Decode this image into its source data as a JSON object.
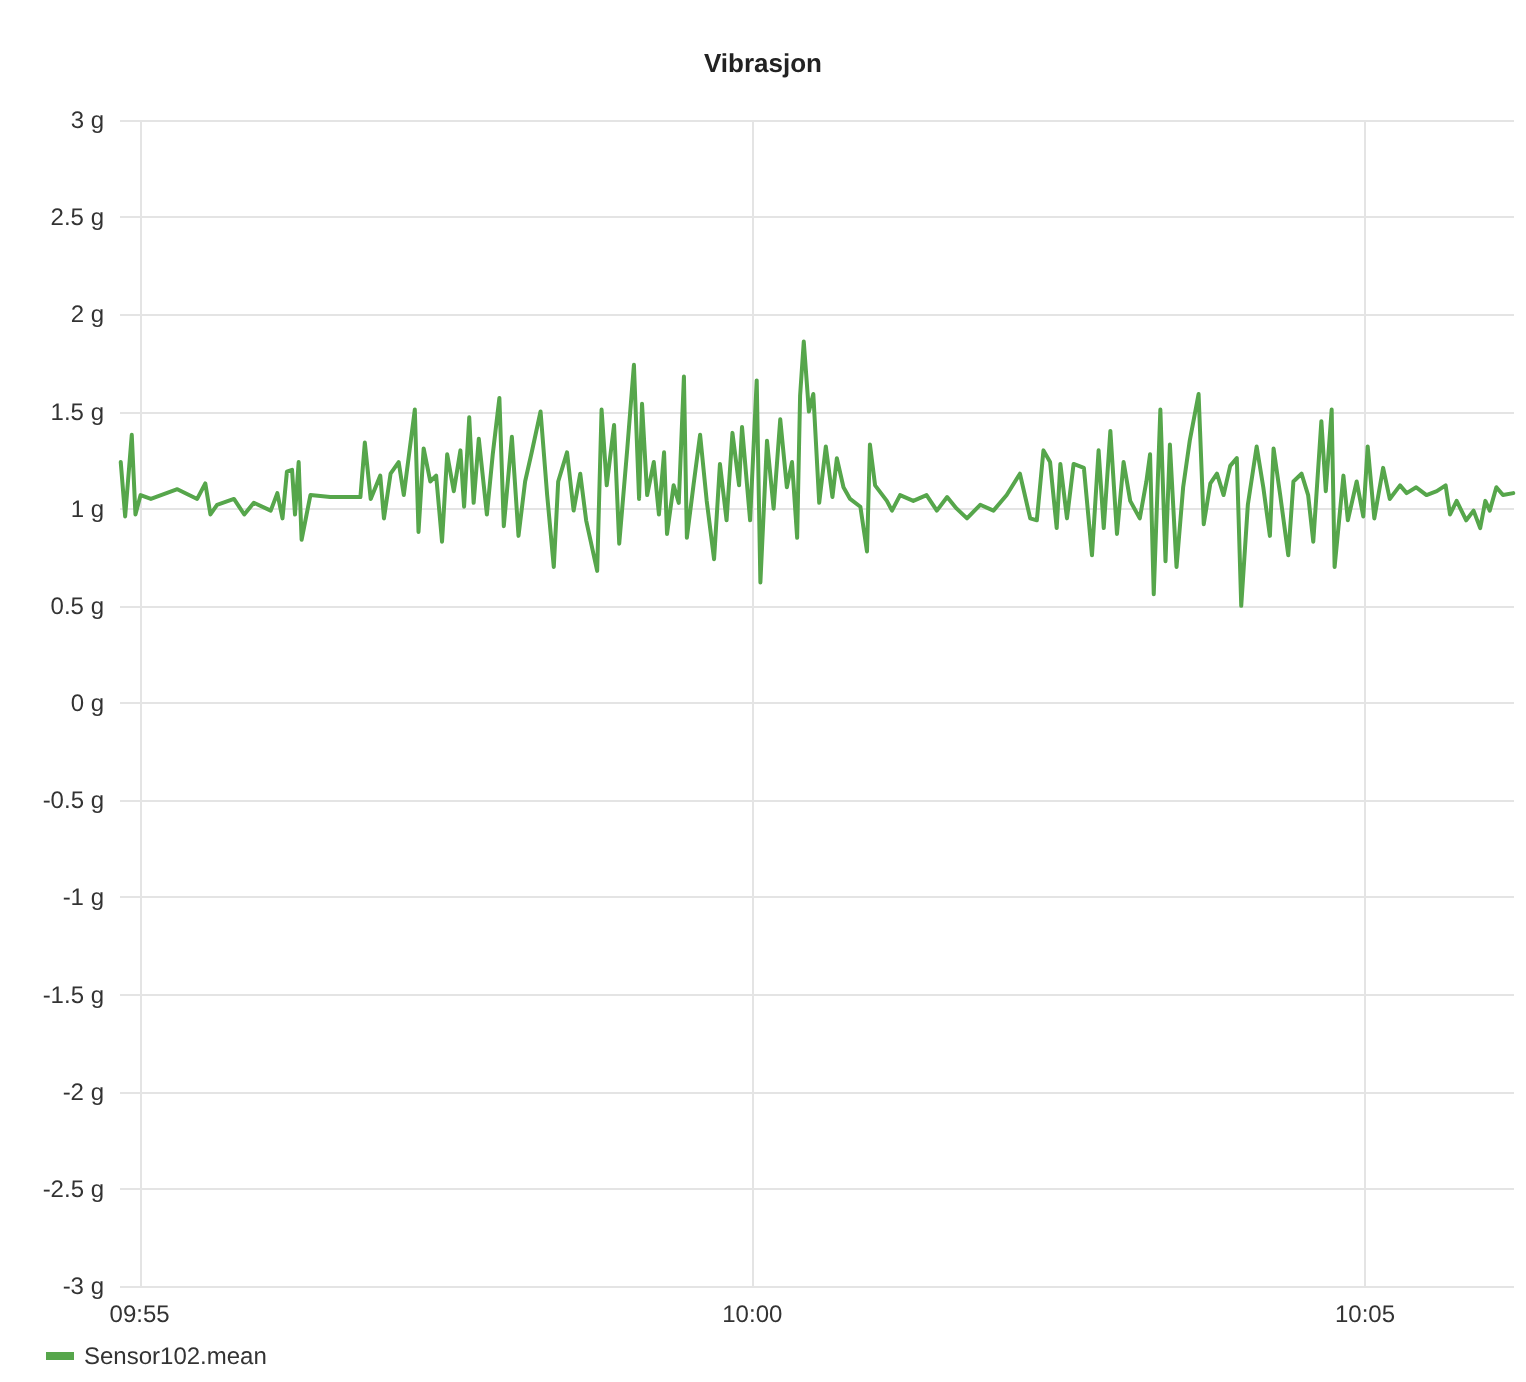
{
  "chart_data": {
    "type": "line",
    "title": "Vibrasjon",
    "x": [
      9.9141,
      9.9147,
      9.9156,
      9.9161,
      9.9168,
      9.9182,
      9.9218,
      9.9245,
      9.9256,
      9.9263,
      9.9272,
      9.9295,
      9.9309,
      9.9322,
      9.9345,
      9.9354,
      9.9361,
      9.9367,
      9.9374,
      9.9378,
      9.9383,
      9.9387,
      9.9399,
      9.9426,
      9.9467,
      9.9473,
      9.9481,
      9.9494,
      9.9499,
      9.9508,
      9.9519,
      9.9526,
      9.9541,
      9.9546,
      9.9553,
      9.9562,
      9.957,
      9.9578,
      9.9585,
      9.9594,
      9.9603,
      9.9608,
      9.9615,
      9.9621,
      9.9628,
      9.9639,
      9.9647,
      9.9656,
      9.9662,
      9.9673,
      9.9682,
      9.9691,
      9.97,
      9.9712,
      9.9721,
      9.973,
      9.9736,
      9.9748,
      9.9757,
      9.9766,
      9.9774,
      9.9789,
      9.9795,
      9.9802,
      9.9812,
      9.9819,
      9.983,
      9.9839,
      9.9846,
      9.985,
      9.9857,
      9.9866,
      9.9873,
      9.988,
      9.9884,
      9.9893,
      9.99,
      9.9907,
      9.9911,
      9.992,
      9.9929,
      9.9938,
      9.9948,
      9.9956,
      9.9965,
      9.9973,
      9.9982,
      9.9986,
      9.9997,
      10.0006,
      10.0011,
      10.002,
      10.0029,
      10.0038,
      10.0047,
      10.0054,
      10.0061,
      10.0065,
      10.007,
      10.0077,
      10.0083,
      10.0091,
      10.01,
      10.0109,
      10.0115,
      10.0124,
      10.0133,
      10.0147,
      10.0156,
      10.016,
      10.0167,
      10.0183,
      10.019,
      10.0201,
      10.0219,
      10.0237,
      10.0251,
      10.0265,
      10.0278,
      10.0292,
      10.031,
      10.0328,
      10.0346,
      10.0364,
      10.0378,
      10.0387,
      10.0396,
      10.0405,
      10.0414,
      10.0419,
      10.0428,
      10.0437,
      10.0451,
      10.0462,
      10.0471,
      10.0478,
      10.0487,
      10.0496,
      10.0505,
      10.0514,
      10.0527,
      10.0536,
      10.0541,
      10.0546,
      10.0555,
      10.0562,
      10.0568,
      10.0577,
      10.0586,
      10.0595,
      10.0607,
      10.0614,
      10.0623,
      10.0632,
      10.0641,
      10.065,
      10.0659,
      10.0665,
      10.0674,
      10.0686,
      10.0695,
      10.0704,
      10.0709,
      10.0718,
      10.0729,
      10.0736,
      10.0747,
      10.0756,
      10.0763,
      10.0774,
      10.078,
      10.0788,
      10.0792,
      10.0804,
      10.081,
      10.0822,
      10.0831,
      10.0837,
      10.0846,
      10.0858,
      10.0867,
      10.0881,
      10.089,
      10.0903,
      10.0917,
      10.0931,
      10.0943,
      10.0949,
      10.0958,
      10.0971,
      10.0981,
      10.099,
      10.0997,
      10.1003,
      10.1012,
      10.1021,
      10.1035
    ],
    "series": [
      {
        "name": "Sensor102.mean",
        "color": "#56a64b",
        "values": [
          1.24,
          0.96,
          1.38,
          0.97,
          1.07,
          1.05,
          1.1,
          1.05,
          1.13,
          0.97,
          1.02,
          1.05,
          0.97,
          1.03,
          0.99,
          1.08,
          0.95,
          1.19,
          1.2,
          0.97,
          1.24,
          0.84,
          1.07,
          1.06,
          1.06,
          1.34,
          1.05,
          1.17,
          0.95,
          1.18,
          1.24,
          1.07,
          1.51,
          0.88,
          1.31,
          1.14,
          1.17,
          0.83,
          1.28,
          1.09,
          1.3,
          1.01,
          1.47,
          1.03,
          1.36,
          0.97,
          1.28,
          1.57,
          0.91,
          1.37,
          0.86,
          1.14,
          1.29,
          1.5,
          1.07,
          0.7,
          1.14,
          1.29,
          0.99,
          1.18,
          0.94,
          0.68,
          1.51,
          1.12,
          1.43,
          0.82,
          1.31,
          1.74,
          1.05,
          1.54,
          1.07,
          1.24,
          0.97,
          1.29,
          0.87,
          1.12,
          1.03,
          1.68,
          0.85,
          1.12,
          1.38,
          1.04,
          0.74,
          1.23,
          0.94,
          1.39,
          1.12,
          1.42,
          0.94,
          1.66,
          0.62,
          1.35,
          1.0,
          1.46,
          1.11,
          1.24,
          0.85,
          1.58,
          1.86,
          1.5,
          1.59,
          1.03,
          1.32,
          1.06,
          1.26,
          1.11,
          1.05,
          1.01,
          0.78,
          1.33,
          1.12,
          1.04,
          0.99,
          1.07,
          1.04,
          1.07,
          0.99,
          1.06,
          1.0,
          0.95,
          1.02,
          0.99,
          1.07,
          1.18,
          0.95,
          0.94,
          1.3,
          1.24,
          0.9,
          1.23,
          0.95,
          1.23,
          1.21,
          0.76,
          1.3,
          0.9,
          1.4,
          0.87,
          1.24,
          1.04,
          0.95,
          1.14,
          1.28,
          0.56,
          1.51,
          0.73,
          1.33,
          0.7,
          1.11,
          1.35,
          1.59,
          0.92,
          1.13,
          1.18,
          1.07,
          1.22,
          1.26,
          0.5,
          1.02,
          1.32,
          1.11,
          0.86,
          1.31,
          1.07,
          0.76,
          1.14,
          1.18,
          1.07,
          0.83,
          1.45,
          1.09,
          1.51,
          0.7,
          1.17,
          0.94,
          1.14,
          0.96,
          1.32,
          0.95,
          1.21,
          1.05,
          1.12,
          1.08,
          1.11,
          1.07,
          1.09,
          1.12,
          0.97,
          1.04,
          0.94,
          0.99,
          0.9,
          1.04,
          0.99,
          1.11,
          1.07,
          1.08
        ]
      }
    ],
    "xlim": [
      9.914,
      10.1036
    ],
    "xticks": [
      {
        "value": 9.916667,
        "label": "09:55"
      },
      {
        "value": 10,
        "label": "10:00"
      },
      {
        "value": 10.083333,
        "label": "10:05"
      }
    ],
    "ylim": [
      -3,
      3
    ],
    "yticks": [
      {
        "value": -3,
        "label": "-3 g"
      },
      {
        "value": -2.5,
        "label": "-2.5 g"
      },
      {
        "value": -2,
        "label": "-2 g"
      },
      {
        "value": -1.5,
        "label": "-1.5 g"
      },
      {
        "value": -1,
        "label": "-1 g"
      },
      {
        "value": -0.5,
        "label": "-0.5 g"
      },
      {
        "value": 0,
        "label": "0 g"
      },
      {
        "value": 0.5,
        "label": "0.5 g"
      },
      {
        "value": 1,
        "label": "1 g"
      },
      {
        "value": 1.5,
        "label": "1.5 g"
      },
      {
        "value": 2,
        "label": "2 g"
      },
      {
        "value": 2.5,
        "label": "2.5 g"
      },
      {
        "value": 3,
        "label": "3 g"
      }
    ],
    "grid": true,
    "legend": "bottom left",
    "marker": "none",
    "line_style": "solid"
  }
}
